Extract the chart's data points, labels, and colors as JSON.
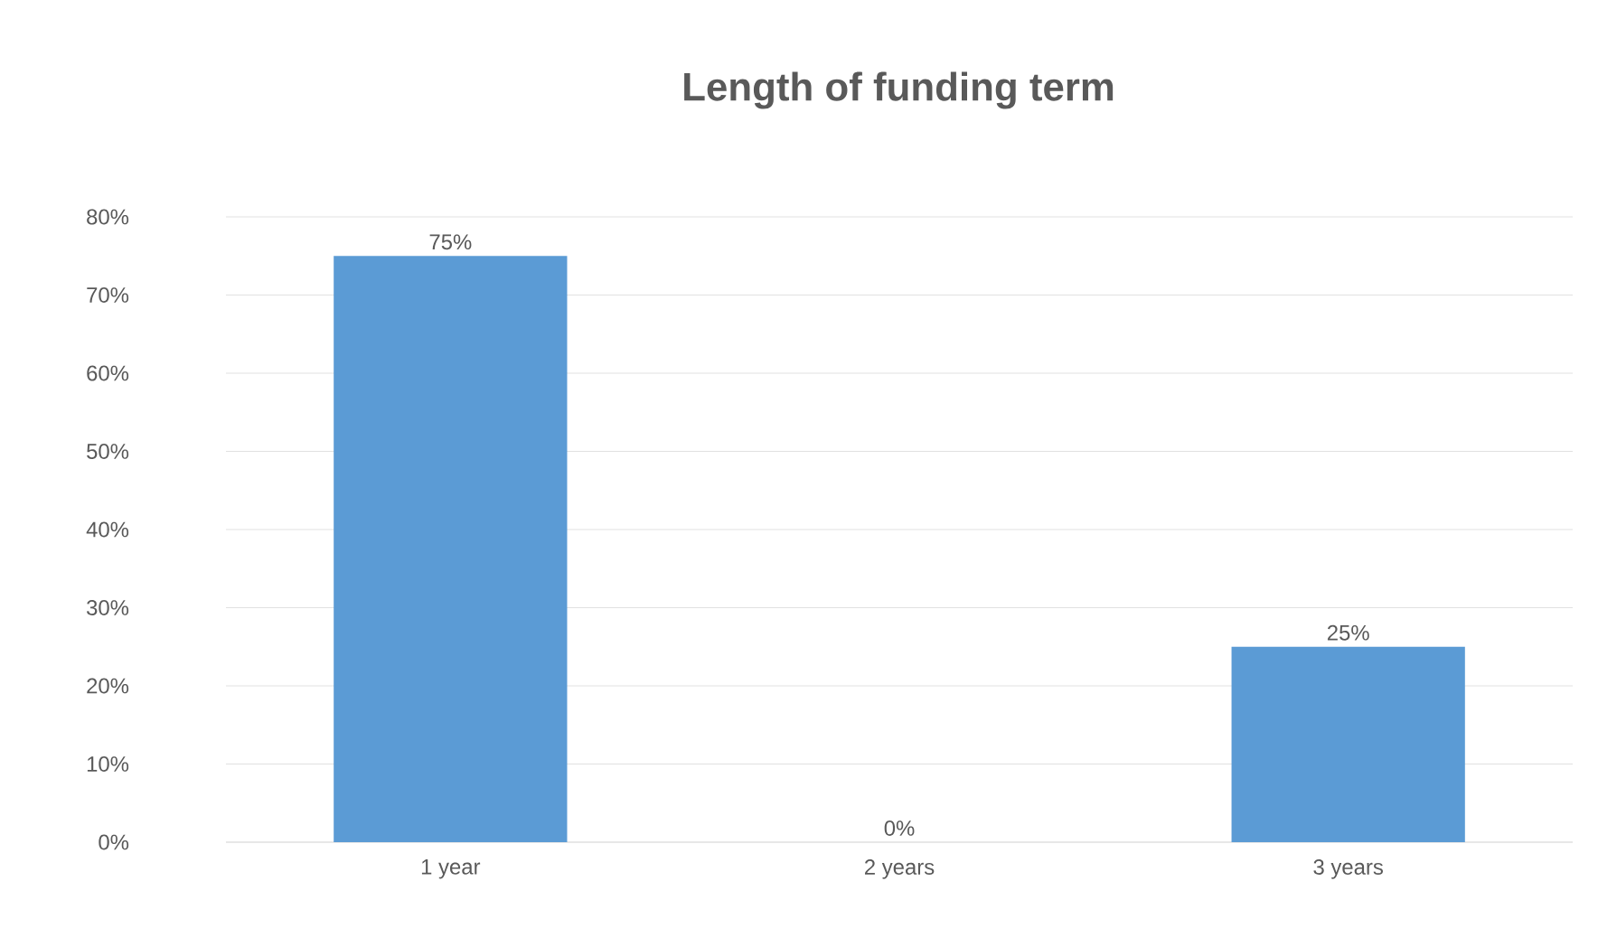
{
  "chart_data": {
    "type": "bar",
    "title": "Length of funding term",
    "categories": [
      "1 year",
      "2 years",
      "3 years"
    ],
    "values": [
      75,
      0,
      25
    ],
    "value_labels": [
      "75%",
      "0%",
      "25%"
    ],
    "color": "#5b9bd5",
    "ylim": [
      0,
      80
    ],
    "yticks": [
      {
        "value": 0,
        "label": "0%"
      },
      {
        "value": 10,
        "label": "10%"
      },
      {
        "value": 20,
        "label": "20%"
      },
      {
        "value": 30,
        "label": "30%"
      },
      {
        "value": 40,
        "label": "40%"
      },
      {
        "value": 50,
        "label": "50%"
      },
      {
        "value": 60,
        "label": "60%"
      },
      {
        "value": 70,
        "label": "70%"
      },
      {
        "value": 80,
        "label": "80%"
      }
    ],
    "grid": "y"
  }
}
